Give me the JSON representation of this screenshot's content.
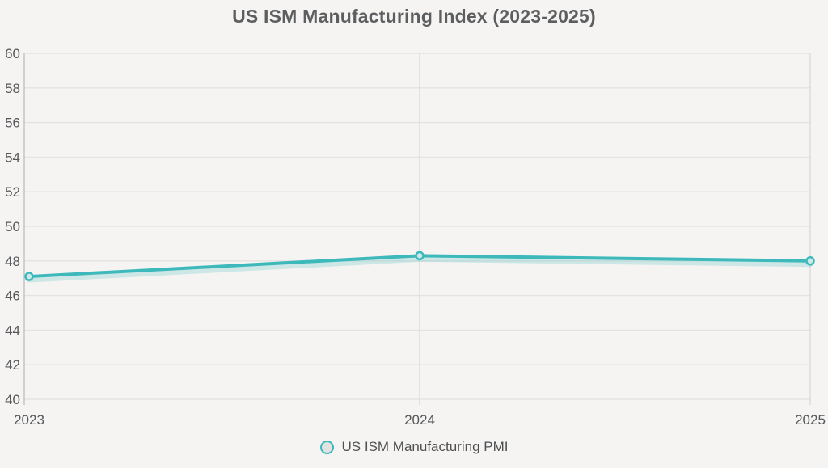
{
  "chart_data": {
    "type": "line",
    "title": "US ISM Manufacturing Index (2023-2025)",
    "categories": [
      "2023",
      "2024",
      "2025"
    ],
    "series": [
      {
        "name": "US ISM Manufacturing PMI",
        "values": [
          47.1,
          48.3,
          48.0
        ]
      }
    ],
    "xlabel": "",
    "ylabel": "",
    "ylim": [
      40,
      60
    ],
    "ytick_step": 2,
    "grid": true,
    "legend_position": "bottom",
    "colors": {
      "line": "#3db9bb",
      "line_shadow": "rgba(61,185,187,0.22)",
      "marker_fill": "#cde9e9",
      "legend_marker_fill": "#e2e2e1",
      "background": "#f5f4f2",
      "grid_horizontal": "#e4e3e1",
      "grid_vertical": "#dcdbd9",
      "axis": "#c7c6c4",
      "title_text": "#5d5e60",
      "tick_text": "#55575a",
      "legend_text": "#4e5052"
    }
  }
}
